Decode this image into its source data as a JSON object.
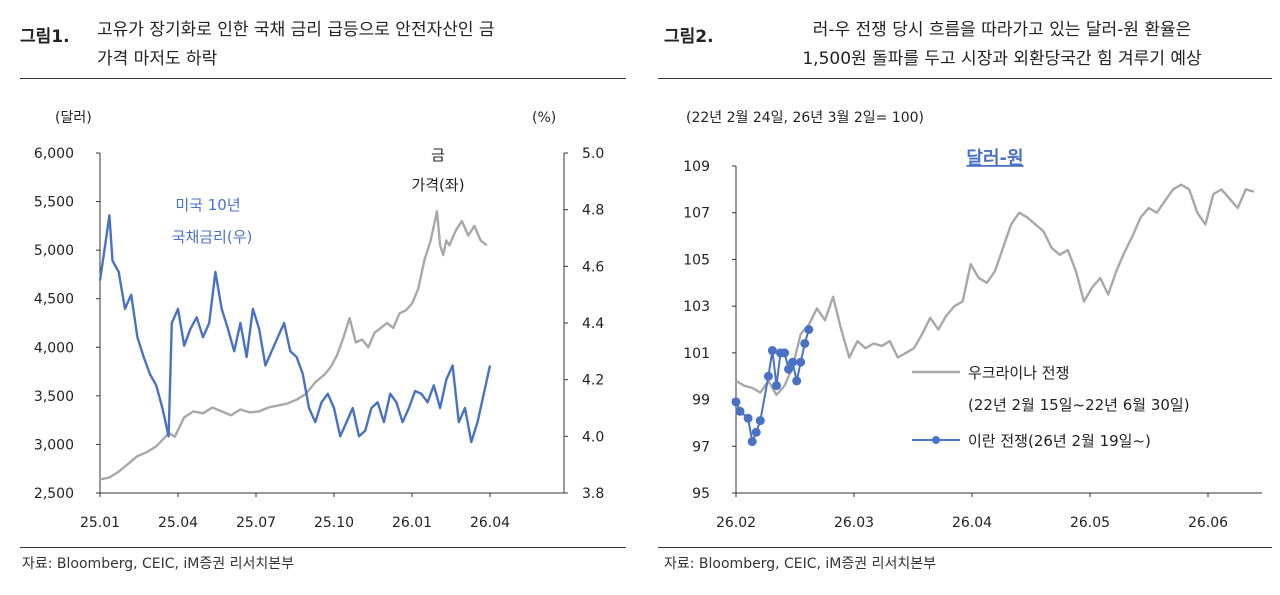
{
  "figure1": {
    "fig_no": "그림1.",
    "title_line1": "고유가 장기화로 인한 국채 금리 급등으로 안전자산인 금",
    "title_line2": "가격 마저도 하락",
    "source": "자료: Bloomberg, CEIC, iM증권 리서치본부"
  },
  "figure2": {
    "fig_no": "그림2.",
    "title_line1": "러-우 전쟁 당시 흐름을 따라가고 있는 달러-원 환율은",
    "title_line2": "1,500원 돌파를 두고 시장과 외환당국간 힘 겨루기 예상",
    "source": "자료: Bloomberg, CEIC, iM증권 리서치본부"
  },
  "chart_data": [
    {
      "type": "line",
      "left_unit": "(달러)",
      "right_unit": "(%)",
      "x_ticks": [
        "25.01",
        "25.04",
        "25.07",
        "25.10",
        "26.01",
        "26.04"
      ],
      "y_left_ticks": [
        "6,000",
        "5,500",
        "5,000",
        "4,500",
        "4,000",
        "3,500",
        "3,000",
        "2,500"
      ],
      "y_right_ticks": [
        "5.0",
        "4.8",
        "4.6",
        "4.4",
        "4.2",
        "4.0",
        "3.8"
      ],
      "ylim_left": [
        2500,
        6000
      ],
      "ylim_right": [
        3.8,
        5.0
      ],
      "xlim": [
        2025.0,
        2026.5
      ],
      "grid": false,
      "series": [
        {
          "name": "금 가격(좌)",
          "axis": "left",
          "color": "#a8a8a8",
          "x": [
            2025.0,
            2025.03,
            2025.06,
            2025.09,
            2025.12,
            2025.15,
            2025.18,
            2025.21,
            2025.22,
            2025.24,
            2025.27,
            2025.3,
            2025.33,
            2025.36,
            2025.39,
            2025.42,
            2025.45,
            2025.48,
            2025.51,
            2025.54,
            2025.57,
            2025.6,
            2025.63,
            2025.66,
            2025.69,
            2025.72,
            2025.74,
            2025.76,
            2025.78,
            2025.8,
            2025.82,
            2025.84,
            2025.86,
            2025.88,
            2025.9,
            2025.92,
            2025.94,
            2025.96,
            2025.98,
            2026.0,
            2026.02,
            2026.04,
            2026.06,
            2026.08,
            2026.09,
            2026.1,
            2026.11,
            2026.12,
            2026.14,
            2026.16,
            2026.18,
            2026.2,
            2026.22,
            2026.24
          ],
          "values": [
            2640,
            2660,
            2720,
            2800,
            2880,
            2920,
            2980,
            3080,
            3120,
            3080,
            3280,
            3340,
            3320,
            3380,
            3340,
            3300,
            3360,
            3330,
            3340,
            3380,
            3400,
            3420,
            3460,
            3520,
            3640,
            3720,
            3800,
            3920,
            4100,
            4300,
            4050,
            4080,
            4000,
            4150,
            4200,
            4250,
            4200,
            4350,
            4380,
            4450,
            4600,
            4900,
            5100,
            5400,
            5050,
            4950,
            5100,
            5050,
            5200,
            5300,
            5150,
            5250,
            5100,
            5050
          ]
        },
        {
          "name": "미국 10년 국채금리(우)",
          "axis": "right",
          "color": "#4a72c4",
          "x": [
            2025.0,
            2025.02,
            2025.03,
            2025.04,
            2025.06,
            2025.08,
            2025.1,
            2025.12,
            2025.14,
            2025.16,
            2025.18,
            2025.2,
            2025.22,
            2025.23,
            2025.25,
            2025.27,
            2025.29,
            2025.31,
            2025.33,
            2025.35,
            2025.37,
            2025.39,
            2025.41,
            2025.43,
            2025.45,
            2025.47,
            2025.49,
            2025.51,
            2025.53,
            2025.55,
            2025.57,
            2025.59,
            2025.61,
            2025.63,
            2025.65,
            2025.67,
            2025.69,
            2025.71,
            2025.73,
            2025.75,
            2025.77,
            2025.79,
            2025.81,
            2025.83,
            2025.85,
            2025.87,
            2025.89,
            2025.91,
            2025.93,
            2025.95,
            2025.97,
            2025.99,
            2026.01,
            2026.03,
            2026.05,
            2026.07,
            2026.09,
            2026.11,
            2026.13,
            2026.15,
            2026.17,
            2026.19,
            2026.21,
            2026.23,
            2026.25
          ],
          "values": [
            4.55,
            4.7,
            4.78,
            4.62,
            4.58,
            4.45,
            4.5,
            4.35,
            4.28,
            4.22,
            4.18,
            4.1,
            4.0,
            4.4,
            4.45,
            4.32,
            4.38,
            4.42,
            4.35,
            4.4,
            4.58,
            4.45,
            4.38,
            4.3,
            4.4,
            4.28,
            4.45,
            4.38,
            4.25,
            4.3,
            4.35,
            4.4,
            4.3,
            4.28,
            4.22,
            4.1,
            4.05,
            4.12,
            4.15,
            4.1,
            4.0,
            4.05,
            4.1,
            4.0,
            4.02,
            4.1,
            4.12,
            4.05,
            4.15,
            4.12,
            4.05,
            4.1,
            4.16,
            4.15,
            4.12,
            4.18,
            4.1,
            4.2,
            4.25,
            4.05,
            4.1,
            3.98,
            4.05,
            4.15,
            4.25
          ]
        }
      ],
      "annotations": [
        {
          "text_line1": "금",
          "text_line2": "가격(좌)",
          "color": "#222222"
        },
        {
          "text_line1": "미국 10년",
          "text_line2": "국채금리(우)",
          "color": "#4a72c4"
        }
      ]
    },
    {
      "type": "line",
      "subtitle": "(22년 2월 24일, 26년 3월 2일= 100)",
      "inner_title": "달러-원",
      "x_ticks": [
        "26.02",
        "26.03",
        "26.04",
        "26.05",
        "26.06"
      ],
      "y_ticks": [
        "109",
        "107",
        "105",
        "103",
        "101",
        "99",
        "97",
        "95"
      ],
      "ylim": [
        95,
        109
      ],
      "xlim": [
        0,
        130
      ],
      "grid": false,
      "legend_position": "lower-right",
      "series": [
        {
          "name": "우크라이나 전쟁",
          "legend_line1": "우크라이나 전쟁",
          "legend_line2": "(22년 2월 15일~22년 6월 30일)",
          "color": "#a8a8a8",
          "style": "line",
          "x": [
            0,
            2,
            4,
            6,
            8,
            10,
            12,
            14,
            16,
            18,
            20,
            22,
            24,
            26,
            28,
            30,
            32,
            34,
            36,
            38,
            40,
            42,
            44,
            46,
            48,
            50,
            52,
            54,
            56,
            58,
            60,
            62,
            64,
            66,
            68,
            70,
            72,
            74,
            76,
            78,
            80,
            82,
            84,
            86,
            88,
            90,
            92,
            94,
            96,
            98,
            100,
            102,
            104,
            106,
            108,
            110,
            112,
            114,
            116,
            118,
            120,
            122,
            124,
            126,
            128
          ],
          "values": [
            99.8,
            99.6,
            99.5,
            99.3,
            99.8,
            99.2,
            99.6,
            100.4,
            101.8,
            102.2,
            102.9,
            102.4,
            103.4,
            102.0,
            100.8,
            101.5,
            101.2,
            101.4,
            101.3,
            101.5,
            100.8,
            101.0,
            101.2,
            101.8,
            102.5,
            102.0,
            102.6,
            103.0,
            103.2,
            104.8,
            104.2,
            104.0,
            104.5,
            105.5,
            106.5,
            107.0,
            106.8,
            106.5,
            106.2,
            105.5,
            105.2,
            105.4,
            104.5,
            103.2,
            103.8,
            104.2,
            103.5,
            104.5,
            105.3,
            106.0,
            106.8,
            107.2,
            107.0,
            107.5,
            108.0,
            108.2,
            108.0,
            107.0,
            106.5,
            107.8,
            108.0,
            107.6,
            107.2,
            108.0,
            107.9
          ]
        },
        {
          "name": "이란 전쟁(26년 2월 19일~)",
          "legend_line1": "이란 전쟁(26년 2월 19일~)",
          "color": "#4a72c4",
          "style": "line-markers",
          "x": [
            0,
            1,
            3,
            4,
            5,
            6,
            8,
            9,
            10,
            11,
            12,
            13,
            14,
            15,
            16,
            17,
            18
          ],
          "values": [
            98.9,
            98.5,
            98.2,
            97.2,
            97.6,
            98.1,
            100.0,
            101.1,
            99.6,
            101.0,
            101.0,
            100.3,
            100.6,
            99.8,
            100.6,
            101.4,
            102.0
          ]
        }
      ]
    }
  ]
}
